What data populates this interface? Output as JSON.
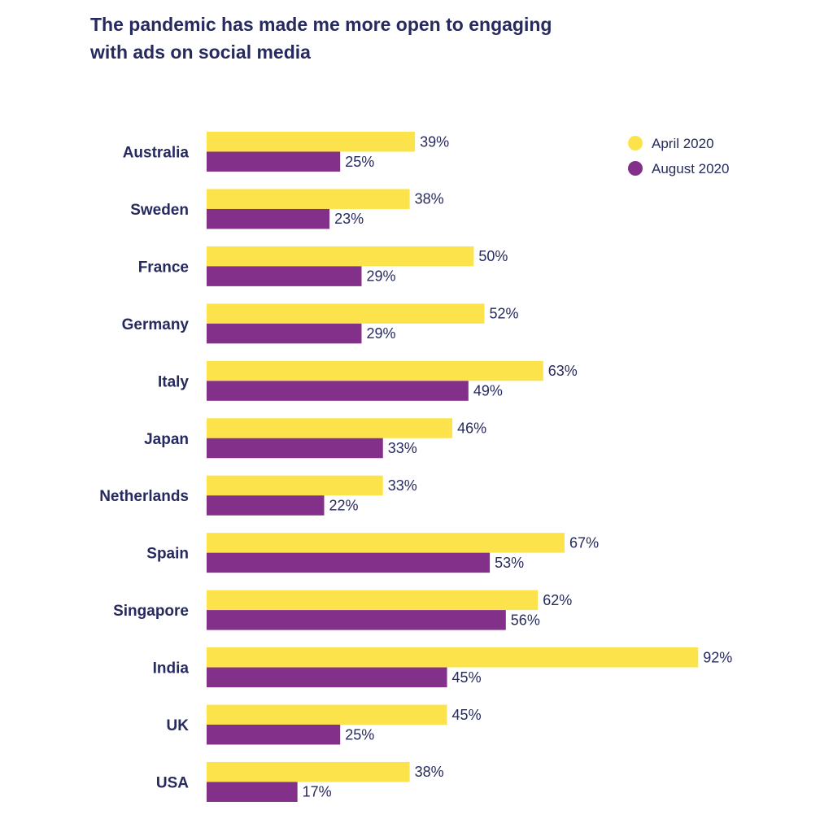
{
  "chart_data": {
    "type": "bar",
    "orientation": "horizontal",
    "title_lines": [
      "The pandemic has made me more open to engaging",
      "with ads on social media"
    ],
    "categories": [
      "Australia",
      "Sweden",
      "France",
      "Germany",
      "Italy",
      "Japan",
      "Netherlands",
      "Spain",
      "Singapore",
      "India",
      "UK",
      "USA"
    ],
    "series": [
      {
        "name": "April 2020",
        "color": "#fde34b",
        "values": [
          39,
          38,
          50,
          52,
          63,
          46,
          33,
          67,
          62,
          92,
          45,
          38
        ],
        "labels": [
          "39%",
          "38%",
          "50%",
          "52%",
          "63%",
          "46%",
          "33%",
          "67%",
          "62%",
          "92%",
          "45%",
          "38%"
        ]
      },
      {
        "name": "August 2020",
        "color": "#83308a",
        "values": [
          25,
          23,
          29,
          29,
          49,
          33,
          22,
          53,
          56,
          45,
          25,
          17
        ],
        "labels": [
          "25%",
          "23%",
          "29%",
          "29%",
          "49%",
          "33%",
          "22%",
          "53%",
          "56%",
          "45%",
          "25%",
          "17%"
        ]
      }
    ],
    "xlim": [
      0,
      100
    ],
    "grid": false,
    "legend_position": "top-right",
    "unit": "%"
  }
}
